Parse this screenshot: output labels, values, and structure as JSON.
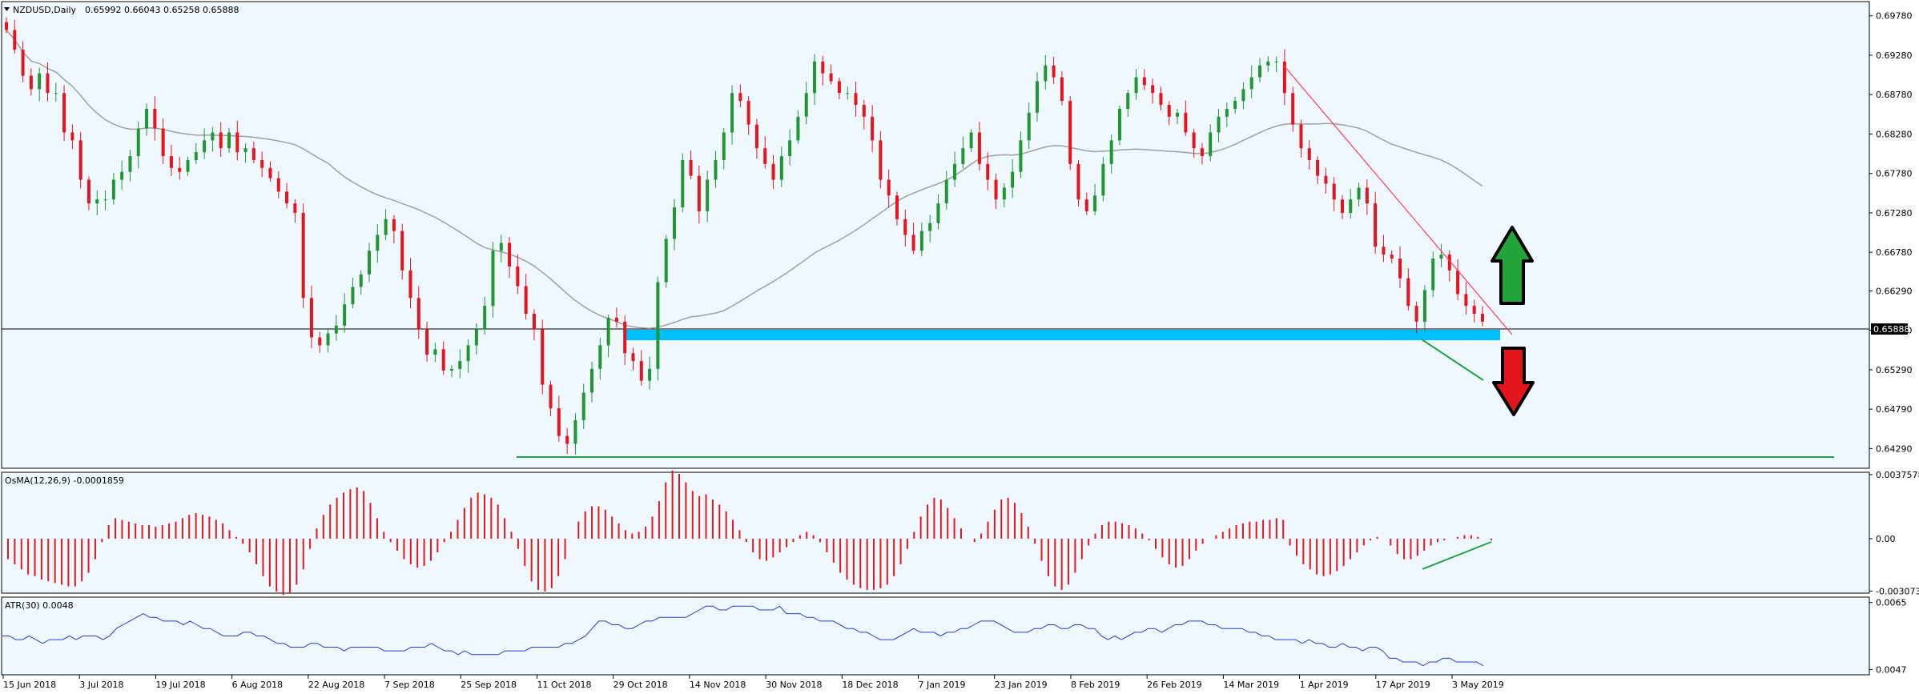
{
  "symbol_header": {
    "symbol": "NZDUSD,Daily",
    "ohlc": "0.65992 0.66043 0.65258 0.65888"
  },
  "osma_header": "OsMA(12,26,9) -0.0001859",
  "atr_header": "ATR(30) 0.0048",
  "colors": {
    "background": "#F0F8FF",
    "bull": "#1E9632",
    "bear": "#E6141E",
    "ma": "#A0A0A0",
    "support_zone": "#00BFFF",
    "trendline": "#FF3B5C",
    "green_line": "#20A040",
    "osma_bar": "#E6141E",
    "atr_line": "#2A3CD0",
    "arrow_up": "#22A43A",
    "arrow_down": "#E3161E"
  },
  "icons": {
    "header_arrow": "triangle-down-icon",
    "up_arrow": "arrow-up-icon",
    "down_arrow": "arrow-down-icon"
  },
  "chart_data": [
    {
      "type": "candlestick",
      "title": "NZDUSD,Daily",
      "current_price": "0.65888",
      "y_ticks": [
        "0.69780",
        "0.69280",
        "0.68780",
        "0.68280",
        "0.67780",
        "0.67280",
        "0.66780",
        "0.66290",
        "0.65790",
        "0.65290",
        "0.64790",
        "0.64290"
      ],
      "ylim": [
        0.6405,
        0.6995
      ],
      "x_ticks": [
        "15 Jun 2018",
        "3 Jul 2018",
        "19 Jul 2018",
        "6 Aug 2018",
        "22 Aug 2018",
        "7 Sep 2018",
        "25 Sep 2018",
        "11 Oct 2018",
        "29 Oct 2018",
        "14 Nov 2018",
        "30 Nov 2018",
        "18 Dec 2018",
        "7 Jan 2019",
        "23 Jan 2019",
        "8 Feb 2019",
        "26 Feb 2019",
        "14 Mar 2019",
        "1 Apr 2019",
        "17 Apr 2019",
        "3 May 2019"
      ],
      "price_path": [
        0.696,
        0.6935,
        0.6902,
        0.6885,
        0.6905,
        0.688,
        0.688,
        0.683,
        0.682,
        0.677,
        0.674,
        0.6745,
        0.6745,
        0.677,
        0.678,
        0.68,
        0.6835,
        0.686,
        0.6835,
        0.68,
        0.6785,
        0.678,
        0.6795,
        0.6805,
        0.682,
        0.683,
        0.681,
        0.683,
        0.6805,
        0.681,
        0.6795,
        0.6785,
        0.6772,
        0.6755,
        0.674,
        0.6728,
        0.662,
        0.657,
        0.656,
        0.6575,
        0.6585,
        0.6612,
        0.6634,
        0.665,
        0.668,
        0.67,
        0.672,
        0.6705,
        0.6655,
        0.662,
        0.658,
        0.6548,
        0.6555,
        0.6528,
        0.653,
        0.654,
        0.656,
        0.658,
        0.661,
        0.668,
        0.669,
        0.666,
        0.6635,
        0.66,
        0.658,
        0.651,
        0.648,
        0.6445,
        0.6435,
        0.6465,
        0.65,
        0.653,
        0.656,
        0.6595,
        0.659,
        0.655,
        0.654,
        0.6515,
        0.653,
        0.664,
        0.6695,
        0.6735,
        0.6795,
        0.6775,
        0.673,
        0.677,
        0.6795,
        0.683,
        0.688,
        0.687,
        0.684,
        0.681,
        0.679,
        0.677,
        0.68,
        0.682,
        0.685,
        0.688,
        0.692,
        0.6905,
        0.6895,
        0.688,
        0.688,
        0.6865,
        0.685,
        0.682,
        0.677,
        0.675,
        0.672,
        0.67,
        0.668,
        0.6705,
        0.6715,
        0.674,
        0.677,
        0.679,
        0.681,
        0.683,
        0.679,
        0.677,
        0.6745,
        0.676,
        0.678,
        0.682,
        0.6855,
        0.6895,
        0.6915,
        0.69,
        0.687,
        0.679,
        0.6745,
        0.673,
        0.675,
        0.679,
        0.682,
        0.686,
        0.688,
        0.69,
        0.689,
        0.688,
        0.6865,
        0.685,
        0.6855,
        0.683,
        0.681,
        0.68,
        0.683,
        0.685,
        0.686,
        0.687,
        0.6885,
        0.69,
        0.6915,
        0.692,
        0.692,
        0.688,
        0.684,
        0.681,
        0.6795,
        0.6775,
        0.6765,
        0.6745,
        0.6728,
        0.6745,
        0.676,
        0.674,
        0.6685,
        0.6675,
        0.667,
        0.6645,
        0.661,
        0.659,
        0.663,
        0.667,
        0.6675,
        0.6655,
        0.6625,
        0.661,
        0.66,
        0.659
      ]
    },
    {
      "type": "bar",
      "title": "OsMA(12,26,9) -0.0001859",
      "y_ticks": [
        "0.0037578",
        "0.00",
        "-0.0030737"
      ],
      "ylim": [
        -0.0031,
        0.0038
      ],
      "values": [
        -0.0012,
        -0.0015,
        -0.0018,
        -0.0021,
        -0.0022,
        -0.0024,
        -0.0025,
        -0.0026,
        -0.0027,
        -0.0028,
        -0.0028,
        -0.0025,
        -0.002,
        -0.0012,
        -0.0002,
        0.0008,
        0.0012,
        0.0011,
        0.001,
        0.0009,
        0.0008,
        0.0008,
        0.0007,
        0.0008,
        0.0009,
        0.001,
        0.0012,
        0.0014,
        0.0015,
        0.0014,
        0.0013,
        0.0011,
        0.0009,
        0.0005,
        0.0001,
        -0.0003,
        -0.0008,
        -0.0015,
        -0.0022,
        -0.0028,
        -0.0031,
        -0.0033,
        -0.0032,
        -0.0027,
        -0.0018,
        -0.0006,
        0.0006,
        0.0014,
        0.002,
        0.0024,
        0.0027,
        0.0029,
        0.003,
        0.0028,
        0.0021,
        0.0012,
        0.0004,
        -0.0002,
        -0.0007,
        -0.0012,
        -0.0015,
        -0.0017,
        -0.0016,
        -0.0013,
        -0.0008,
        -0.0002,
        0.0004,
        0.0011,
        0.0018,
        0.0024,
        0.0027,
        0.0026,
        0.0024,
        0.002,
        0.0012,
        0.0004,
        -0.0006,
        -0.0016,
        -0.0025,
        -0.003,
        -0.0031,
        -0.0029,
        -0.0022,
        -0.0012,
        0.0,
        0.001,
        0.0016,
        0.0019,
        0.0019,
        0.0017,
        0.0013,
        0.0009,
        0.0005,
        0.0003,
        0.0004,
        0.0007,
        0.0013,
        0.0022,
        0.0033,
        0.004,
        0.0038,
        0.0033,
        0.0028,
        0.0025,
        0.0026,
        0.0023,
        0.002,
        0.0016,
        0.0011,
        0.0005,
        -0.0002,
        -0.0008,
        -0.0012,
        -0.0013,
        -0.0011,
        -0.0008,
        -0.0005,
        -0.0002,
        0.0002,
        0.0004,
        0.0002,
        -0.0002,
        -0.0008,
        -0.0014,
        -0.002,
        -0.0024,
        -0.0027,
        -0.0029,
        -0.003,
        -0.003,
        -0.0029,
        -0.0027,
        -0.0022,
        -0.0015,
        -0.0006,
        0.0004,
        0.0013,
        0.002,
        0.0024,
        0.0023,
        0.0018,
        0.0012,
        0.0006,
        0.0,
        -0.0002,
        0.0003,
        0.001,
        0.0017,
        0.0023,
        0.0024,
        0.0021,
        0.0015,
        0.0007,
        -0.0003,
        -0.0013,
        -0.0022,
        -0.0028,
        -0.003,
        -0.0027,
        -0.002,
        -0.0012,
        -0.0004,
        0.0003,
        0.0008,
        0.001,
        0.001,
        0.0009,
        0.0008,
        0.0006,
        0.0003,
        -0.0001,
        -0.0006,
        -0.0011,
        -0.0015,
        -0.0017,
        -0.0016,
        -0.0012,
        -0.0007,
        -0.0003,
        0.0,
        0.0002,
        0.0004,
        0.0006,
        0.0008,
        0.0009,
        0.001,
        0.001,
        0.0011,
        0.0011,
        0.0012,
        0.0011,
        -0.0004,
        -0.001,
        -0.0015,
        -0.0018,
        -0.0021,
        -0.0022,
        -0.0021,
        -0.0019,
        -0.0016,
        -0.0012,
        -0.0008,
        -0.0004,
        -0.0001,
        0.0001,
        0.0,
        -0.0004,
        -0.0009,
        -0.0012,
        -0.0012,
        -0.001,
        -0.0007,
        -0.0004,
        -0.0002,
        -0.0001,
        0.0,
        0.0001,
        0.0002,
        0.0002,
        0.0001,
        0.0,
        -0.0001
      ]
    },
    {
      "type": "line",
      "title": "ATR(30) 0.0048",
      "y_ticks": [
        "0.0065",
        "0.0047"
      ],
      "ylim": [
        0.0046,
        0.0066
      ],
      "values": [
        0.0056,
        0.0056,
        0.0055,
        0.0055,
        0.0056,
        0.0055,
        0.0054,
        0.0055,
        0.0055,
        0.0055,
        0.0056,
        0.0055,
        0.0056,
        0.0056,
        0.0056,
        0.0055,
        0.0056,
        0.0058,
        0.0059,
        0.006,
        0.0061,
        0.0062,
        0.0061,
        0.0061,
        0.006,
        0.006,
        0.006,
        0.0059,
        0.006,
        0.0059,
        0.0058,
        0.0058,
        0.0057,
        0.0056,
        0.0056,
        0.0056,
        0.0057,
        0.0057,
        0.0056,
        0.0056,
        0.0055,
        0.0054,
        0.0054,
        0.0053,
        0.0053,
        0.0053,
        0.0054,
        0.0054,
        0.0053,
        0.0053,
        0.0053,
        0.0052,
        0.0053,
        0.0053,
        0.0053,
        0.0053,
        0.0053,
        0.0052,
        0.0052,
        0.0052,
        0.0052,
        0.0053,
        0.0053,
        0.0053,
        0.0054,
        0.0053,
        0.0052,
        0.0052,
        0.0051,
        0.0052,
        0.0051,
        0.0051,
        0.0051,
        0.0051,
        0.0051,
        0.0052,
        0.0052,
        0.0052,
        0.0052,
        0.0053,
        0.0053,
        0.0053,
        0.0053,
        0.0053,
        0.0054,
        0.0054,
        0.0055,
        0.0056,
        0.0058,
        0.006,
        0.006,
        0.0059,
        0.0059,
        0.0058,
        0.0058,
        0.0059,
        0.006,
        0.006,
        0.0061,
        0.0061,
        0.0061,
        0.0061,
        0.0061,
        0.0062,
        0.0063,
        0.0064,
        0.0064,
        0.0063,
        0.0063,
        0.0064,
        0.0064,
        0.0064,
        0.0064,
        0.0063,
        0.0063,
        0.0063,
        0.0064,
        0.0062,
        0.0062,
        0.0062,
        0.0061,
        0.0061,
        0.006,
        0.006,
        0.006,
        0.0059,
        0.0058,
        0.0058,
        0.0057,
        0.0057,
        0.0056,
        0.0055,
        0.0055,
        0.0055,
        0.0056,
        0.0057,
        0.0058,
        0.0057,
        0.0057,
        0.0057,
        0.0056,
        0.0057,
        0.0057,
        0.0058,
        0.0058,
        0.0059,
        0.006,
        0.006,
        0.006,
        0.0059,
        0.0058,
        0.0057,
        0.0057,
        0.0057,
        0.0058,
        0.0058,
        0.0059,
        0.0059,
        0.0058,
        0.0058,
        0.0059,
        0.0059,
        0.0058,
        0.0058,
        0.0056,
        0.0055,
        0.0056,
        0.0055,
        0.0056,
        0.0057,
        0.0057,
        0.0058,
        0.0058,
        0.0057,
        0.0058,
        0.0059,
        0.0059,
        0.006,
        0.006,
        0.006,
        0.0059,
        0.0059,
        0.0058,
        0.0058,
        0.0058,
        0.0058,
        0.0057,
        0.0057,
        0.0056,
        0.0056,
        0.0055,
        0.0055,
        0.0055,
        0.0055,
        0.0054,
        0.0055,
        0.0054,
        0.0054,
        0.0053,
        0.0053,
        0.0054,
        0.0053,
        0.0053,
        0.0052,
        0.0053,
        0.0053,
        0.0052,
        0.005,
        0.005,
        0.0049,
        0.0049,
        0.0049,
        0.0048,
        0.0049,
        0.0049,
        0.005,
        0.005,
        0.0049,
        0.0049,
        0.0049,
        0.0049,
        0.0048
      ]
    }
  ]
}
